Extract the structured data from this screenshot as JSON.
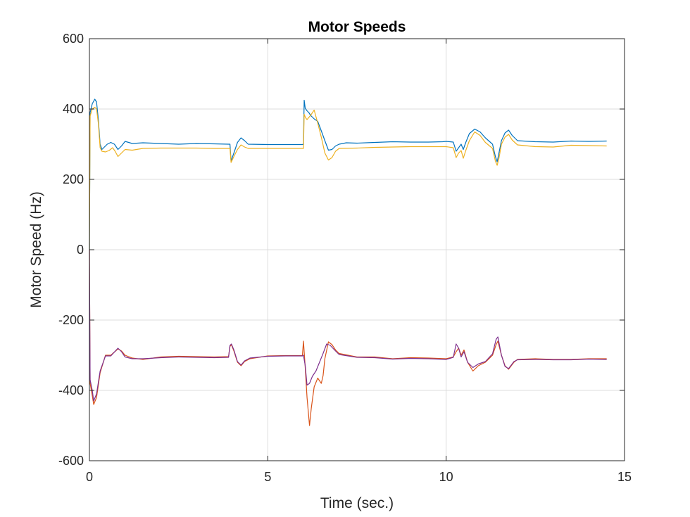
{
  "chart_data": {
    "type": "line",
    "title": "Motor Speeds",
    "xlabel": "Time (sec.)",
    "ylabel": "Motor Speed (Hz)",
    "xlim": [
      0,
      15
    ],
    "ylim": [
      -600,
      600
    ],
    "xticks": [
      0,
      5,
      10,
      15
    ],
    "yticks": [
      -600,
      -400,
      -200,
      0,
      200,
      400,
      600
    ],
    "xtick_labels": [
      "0",
      "5",
      "10",
      "15"
    ],
    "ytick_labels": [
      "-600",
      "-400",
      "-200",
      "0",
      "200",
      "400",
      "600"
    ],
    "grid": true,
    "series": [
      {
        "color": "#0072BD",
        "points": [
          [
            0,
            0
          ],
          [
            0.02,
            390
          ],
          [
            0.08,
            415
          ],
          [
            0.15,
            428
          ],
          [
            0.2,
            420
          ],
          [
            0.25,
            370
          ],
          [
            0.3,
            300
          ],
          [
            0.35,
            285
          ],
          [
            0.4,
            290
          ],
          [
            0.5,
            300
          ],
          [
            0.6,
            305
          ],
          [
            0.7,
            300
          ],
          [
            0.8,
            285
          ],
          [
            0.9,
            295
          ],
          [
            1.0,
            308
          ],
          [
            1.2,
            302
          ],
          [
            1.5,
            304
          ],
          [
            2.0,
            302
          ],
          [
            2.5,
            300
          ],
          [
            3.0,
            302
          ],
          [
            3.5,
            301
          ],
          [
            3.9,
            300
          ],
          [
            3.94,
            300
          ],
          [
            3.97,
            252
          ],
          [
            4.05,
            275
          ],
          [
            4.15,
            305
          ],
          [
            4.25,
            318
          ],
          [
            4.35,
            310
          ],
          [
            4.45,
            300
          ],
          [
            5.0,
            299
          ],
          [
            5.5,
            299
          ],
          [
            5.97,
            299
          ],
          [
            6.0,
            300
          ],
          [
            6.02,
            425
          ],
          [
            6.05,
            402
          ],
          [
            6.1,
            395
          ],
          [
            6.15,
            390
          ],
          [
            6.2,
            382
          ],
          [
            6.3,
            372
          ],
          [
            6.4,
            365
          ],
          [
            6.5,
            338
          ],
          [
            6.6,
            310
          ],
          [
            6.7,
            283
          ],
          [
            6.8,
            285
          ],
          [
            6.9,
            295
          ],
          [
            7.0,
            300
          ],
          [
            7.2,
            304
          ],
          [
            7.5,
            303
          ],
          [
            8.0,
            305
          ],
          [
            8.5,
            307
          ],
          [
            9.0,
            306
          ],
          [
            9.5,
            306
          ],
          [
            9.9,
            307
          ],
          [
            10.0,
            308
          ],
          [
            10.2,
            306
          ],
          [
            10.28,
            280
          ],
          [
            10.35,
            290
          ],
          [
            10.42,
            300
          ],
          [
            10.48,
            285
          ],
          [
            10.55,
            305
          ],
          [
            10.65,
            330
          ],
          [
            10.8,
            343
          ],
          [
            10.95,
            335
          ],
          [
            11.1,
            318
          ],
          [
            11.3,
            300
          ],
          [
            11.38,
            265
          ],
          [
            11.43,
            250
          ],
          [
            11.48,
            275
          ],
          [
            11.55,
            310
          ],
          [
            11.65,
            332
          ],
          [
            11.75,
            340
          ],
          [
            11.85,
            325
          ],
          [
            12.0,
            310
          ],
          [
            12.5,
            307
          ],
          [
            13.0,
            306
          ],
          [
            13.5,
            309
          ],
          [
            14.0,
            308
          ],
          [
            14.5,
            309
          ]
        ]
      },
      {
        "color": "#EDB120",
        "points": [
          [
            0,
            0
          ],
          [
            0.02,
            380
          ],
          [
            0.08,
            400
          ],
          [
            0.15,
            405
          ],
          [
            0.2,
            400
          ],
          [
            0.25,
            360
          ],
          [
            0.3,
            290
          ],
          [
            0.35,
            280
          ],
          [
            0.45,
            278
          ],
          [
            0.55,
            282
          ],
          [
            0.65,
            290
          ],
          [
            0.72,
            280
          ],
          [
            0.8,
            265
          ],
          [
            0.9,
            275
          ],
          [
            1.0,
            285
          ],
          [
            1.2,
            283
          ],
          [
            1.5,
            288
          ],
          [
            2.0,
            289
          ],
          [
            2.5,
            289
          ],
          [
            3.0,
            289
          ],
          [
            3.5,
            288
          ],
          [
            3.9,
            288
          ],
          [
            3.94,
            288
          ],
          [
            3.97,
            248
          ],
          [
            4.05,
            265
          ],
          [
            4.15,
            285
          ],
          [
            4.25,
            298
          ],
          [
            4.35,
            292
          ],
          [
            4.45,
            288
          ],
          [
            5.0,
            288
          ],
          [
            5.5,
            288
          ],
          [
            5.97,
            288
          ],
          [
            6.0,
            288
          ],
          [
            6.02,
            385
          ],
          [
            6.06,
            375
          ],
          [
            6.1,
            370
          ],
          [
            6.2,
            382
          ],
          [
            6.3,
            397
          ],
          [
            6.4,
            360
          ],
          [
            6.5,
            320
          ],
          [
            6.6,
            275
          ],
          [
            6.7,
            255
          ],
          [
            6.8,
            262
          ],
          [
            6.9,
            280
          ],
          [
            7.0,
            288
          ],
          [
            7.5,
            289
          ],
          [
            8.0,
            291
          ],
          [
            8.5,
            292
          ],
          [
            9.0,
            293
          ],
          [
            9.5,
            293
          ],
          [
            10.0,
            293
          ],
          [
            10.2,
            290
          ],
          [
            10.28,
            262
          ],
          [
            10.35,
            275
          ],
          [
            10.42,
            282
          ],
          [
            10.48,
            260
          ],
          [
            10.55,
            282
          ],
          [
            10.65,
            310
          ],
          [
            10.8,
            335
          ],
          [
            10.95,
            325
          ],
          [
            11.1,
            305
          ],
          [
            11.3,
            288
          ],
          [
            11.38,
            252
          ],
          [
            11.43,
            240
          ],
          [
            11.48,
            260
          ],
          [
            11.55,
            300
          ],
          [
            11.65,
            320
          ],
          [
            11.75,
            328
          ],
          [
            11.85,
            312
          ],
          [
            12.0,
            298
          ],
          [
            12.5,
            293
          ],
          [
            13.0,
            292
          ],
          [
            13.5,
            297
          ],
          [
            14.0,
            296
          ],
          [
            14.5,
            295
          ]
        ]
      },
      {
        "color": "#D95319",
        "points": [
          [
            0,
            0
          ],
          [
            0.02,
            -380
          ],
          [
            0.08,
            -415
          ],
          [
            0.12,
            -440
          ],
          [
            0.2,
            -420
          ],
          [
            0.3,
            -350
          ],
          [
            0.45,
            -300
          ],
          [
            0.6,
            -300
          ],
          [
            0.8,
            -282
          ],
          [
            0.9,
            -288
          ],
          [
            1.0,
            -300
          ],
          [
            1.2,
            -308
          ],
          [
            1.5,
            -312
          ],
          [
            2.0,
            -305
          ],
          [
            2.5,
            -303
          ],
          [
            3.0,
            -304
          ],
          [
            3.5,
            -305
          ],
          [
            3.9,
            -304
          ],
          [
            3.94,
            -275
          ],
          [
            3.98,
            -270
          ],
          [
            4.05,
            -288
          ],
          [
            4.15,
            -320
          ],
          [
            4.25,
            -330
          ],
          [
            4.35,
            -318
          ],
          [
            4.5,
            -310
          ],
          [
            5.0,
            -302
          ],
          [
            5.5,
            -301
          ],
          [
            5.97,
            -301
          ],
          [
            6.0,
            -260
          ],
          [
            6.04,
            -320
          ],
          [
            6.1,
            -420
          ],
          [
            6.17,
            -500
          ],
          [
            6.22,
            -450
          ],
          [
            6.3,
            -390
          ],
          [
            6.4,
            -365
          ],
          [
            6.5,
            -380
          ],
          [
            6.55,
            -358
          ],
          [
            6.6,
            -310
          ],
          [
            6.7,
            -262
          ],
          [
            6.8,
            -270
          ],
          [
            6.9,
            -285
          ],
          [
            7.0,
            -295
          ],
          [
            7.5,
            -305
          ],
          [
            8.0,
            -305
          ],
          [
            8.5,
            -310
          ],
          [
            9.0,
            -307
          ],
          [
            9.5,
            -308
          ],
          [
            10.0,
            -310
          ],
          [
            10.2,
            -305
          ],
          [
            10.28,
            -290
          ],
          [
            10.35,
            -280
          ],
          [
            10.42,
            -300
          ],
          [
            10.5,
            -285
          ],
          [
            10.6,
            -320
          ],
          [
            10.75,
            -345
          ],
          [
            10.9,
            -330
          ],
          [
            11.1,
            -320
          ],
          [
            11.3,
            -300
          ],
          [
            11.4,
            -270
          ],
          [
            11.45,
            -260
          ],
          [
            11.55,
            -300
          ],
          [
            11.65,
            -330
          ],
          [
            11.75,
            -340
          ],
          [
            11.9,
            -320
          ],
          [
            12.0,
            -312
          ],
          [
            12.5,
            -310
          ],
          [
            13.0,
            -312
          ],
          [
            13.5,
            -312
          ],
          [
            14.0,
            -310
          ],
          [
            14.5,
            -310
          ]
        ]
      },
      {
        "color": "#7E2F8E",
        "points": [
          [
            0,
            0
          ],
          [
            0.02,
            -370
          ],
          [
            0.08,
            -400
          ],
          [
            0.12,
            -430
          ],
          [
            0.2,
            -410
          ],
          [
            0.3,
            -345
          ],
          [
            0.45,
            -302
          ],
          [
            0.6,
            -302
          ],
          [
            0.8,
            -280
          ],
          [
            0.9,
            -290
          ],
          [
            1.0,
            -305
          ],
          [
            1.2,
            -310
          ],
          [
            1.5,
            -310
          ],
          [
            2.0,
            -307
          ],
          [
            2.5,
            -305
          ],
          [
            3.0,
            -306
          ],
          [
            3.5,
            -307
          ],
          [
            3.9,
            -306
          ],
          [
            3.94,
            -272
          ],
          [
            3.98,
            -268
          ],
          [
            4.05,
            -285
          ],
          [
            4.15,
            -318
          ],
          [
            4.25,
            -328
          ],
          [
            4.35,
            -316
          ],
          [
            4.5,
            -308
          ],
          [
            5.0,
            -303
          ],
          [
            5.5,
            -302
          ],
          [
            5.97,
            -302
          ],
          [
            6.0,
            -300
          ],
          [
            6.05,
            -330
          ],
          [
            6.1,
            -385
          ],
          [
            6.17,
            -380
          ],
          [
            6.25,
            -360
          ],
          [
            6.35,
            -345
          ],
          [
            6.45,
            -320
          ],
          [
            6.55,
            -295
          ],
          [
            6.65,
            -268
          ],
          [
            6.75,
            -272
          ],
          [
            6.9,
            -288
          ],
          [
            7.0,
            -298
          ],
          [
            7.5,
            -306
          ],
          [
            8.0,
            -307
          ],
          [
            8.5,
            -311
          ],
          [
            9.0,
            -309
          ],
          [
            9.5,
            -310
          ],
          [
            10.0,
            -312
          ],
          [
            10.2,
            -306
          ],
          [
            10.28,
            -268
          ],
          [
            10.35,
            -280
          ],
          [
            10.42,
            -305
          ],
          [
            10.5,
            -290
          ],
          [
            10.6,
            -320
          ],
          [
            10.75,
            -335
          ],
          [
            10.9,
            -325
          ],
          [
            11.1,
            -318
          ],
          [
            11.3,
            -296
          ],
          [
            11.4,
            -255
          ],
          [
            11.45,
            -248
          ],
          [
            11.55,
            -300
          ],
          [
            11.65,
            -332
          ],
          [
            11.75,
            -338
          ],
          [
            11.9,
            -318
          ],
          [
            12.0,
            -313
          ],
          [
            12.5,
            -312
          ],
          [
            13.0,
            -313
          ],
          [
            13.5,
            -313
          ],
          [
            14.0,
            -311
          ],
          [
            14.5,
            -312
          ]
        ]
      }
    ]
  }
}
